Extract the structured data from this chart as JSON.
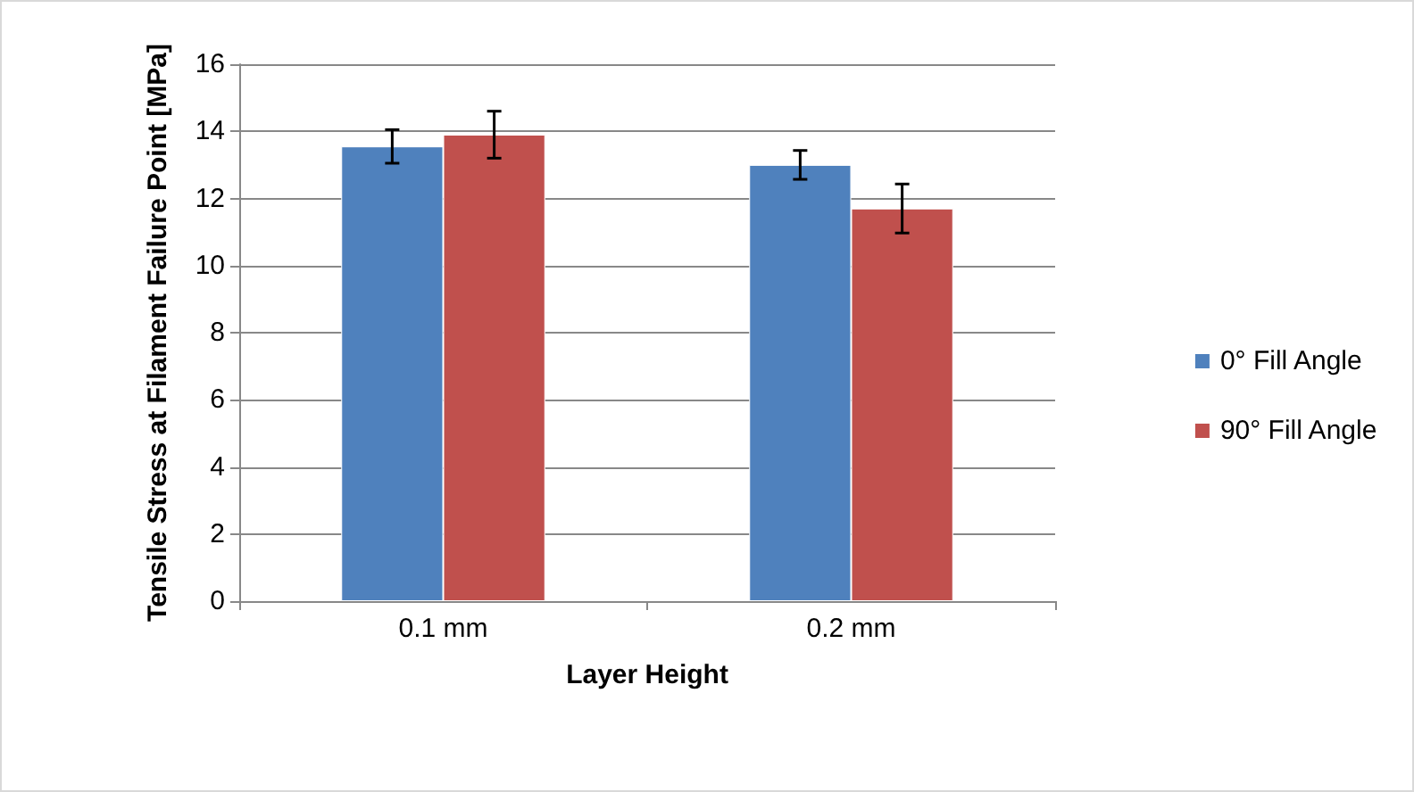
{
  "chart_data": {
    "type": "bar",
    "xlabel": "Layer Height",
    "ylabel": "Tensile Stress at Filament Failure Point [MPa]",
    "categories": [
      "0.1 mm",
      "0.2 mm"
    ],
    "series": [
      {
        "name": "0° Fill Angle",
        "color": "#4f81bd",
        "values": [
          13.55,
          13.0
        ],
        "errors": [
          0.5,
          0.43
        ]
      },
      {
        "name": "90° Fill Angle",
        "color": "#c0504d",
        "values": [
          13.9,
          11.7
        ],
        "errors": [
          0.7,
          0.73
        ]
      }
    ],
    "ylim": [
      0,
      16
    ],
    "yticks": [
      0,
      2,
      4,
      6,
      8,
      10,
      12,
      14,
      16
    ],
    "grid": "y",
    "legend": "right"
  }
}
